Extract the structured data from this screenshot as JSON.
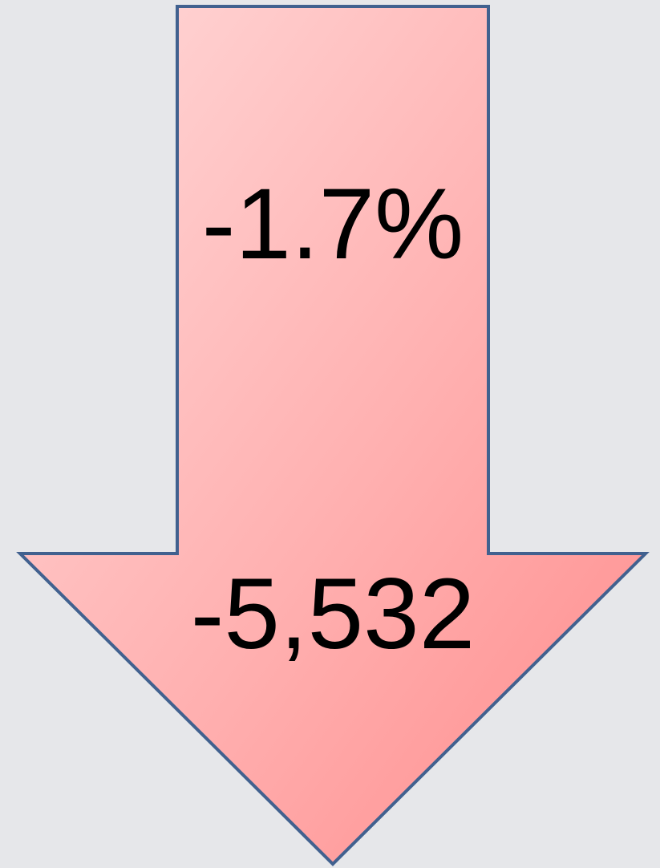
{
  "arrow": {
    "percent": "-1.7%",
    "value": "-5,532"
  }
}
